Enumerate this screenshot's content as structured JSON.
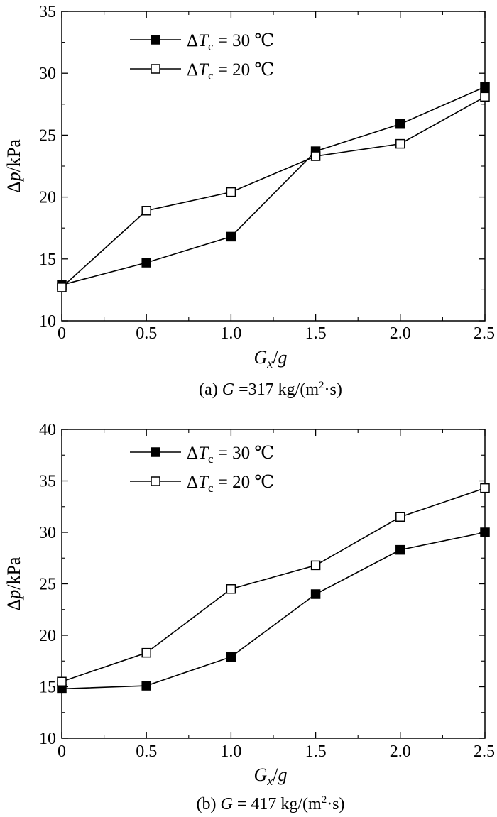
{
  "chart_data": [
    {
      "type": "line",
      "caption": {
        "prefix": "(a) ",
        "symbol": "G",
        "rest": " =317 kg/(m",
        "sup": "2",
        "tail": "·s)"
      },
      "xlabel": {
        "main": "G",
        "sub": "x",
        "suffix": "/g"
      },
      "ylabel": {
        "delta": "Δ",
        "var": "p",
        "unit": "/kPa"
      },
      "xlim": [
        0,
        2.5
      ],
      "ylim": [
        10,
        35
      ],
      "xticks": [
        0,
        0.5,
        1.0,
        1.5,
        2.0,
        2.5
      ],
      "xtick_labels": [
        "0",
        "0.5",
        "1.0",
        "1.5",
        "2.0",
        "2.5"
      ],
      "yticks": [
        10,
        15,
        20,
        25,
        30,
        35
      ],
      "ytick_labels": [
        "10",
        "15",
        "20",
        "25",
        "30",
        "35"
      ],
      "grid": false,
      "legend_position": "top-left",
      "x": [
        0,
        0.5,
        1.0,
        1.5,
        2.0,
        2.5
      ],
      "series": [
        {
          "name": "ΔTc = 30 ℃",
          "legend": {
            "delta": "Δ",
            "var": "T",
            "sub": "c",
            "eq": " = 30 ℃"
          },
          "marker": "filled-square",
          "color": "#000000",
          "values": [
            12.9,
            14.7,
            16.8,
            23.7,
            25.9,
            28.9
          ]
        },
        {
          "name": "ΔTc = 20 ℃",
          "legend": {
            "delta": "Δ",
            "var": "T",
            "sub": "c",
            "eq": " = 20 ℃"
          },
          "marker": "open-square",
          "color": "#000000",
          "values": [
            12.7,
            18.9,
            20.4,
            23.3,
            24.3,
            28.1
          ]
        }
      ]
    },
    {
      "type": "line",
      "caption": {
        "prefix": "(b) ",
        "symbol": "G",
        "rest": " = 417 kg/(m",
        "sup": "2",
        "tail": "·s)"
      },
      "xlabel": {
        "main": "G",
        "sub": "x",
        "suffix": "/g"
      },
      "ylabel": {
        "delta": "Δ",
        "var": "p",
        "unit": "/kPa"
      },
      "xlim": [
        0,
        2.5
      ],
      "ylim": [
        10,
        40
      ],
      "xticks": [
        0,
        0.5,
        1.0,
        1.5,
        2.0,
        2.5
      ],
      "xtick_labels": [
        "0",
        "0.5",
        "1.0",
        "1.5",
        "2.0",
        "2.5"
      ],
      "yticks": [
        10,
        15,
        20,
        25,
        30,
        35,
        40
      ],
      "ytick_labels": [
        "10",
        "15",
        "20",
        "25",
        "30",
        "35",
        "40"
      ],
      "grid": false,
      "legend_position": "top-left",
      "x": [
        0,
        0.5,
        1.0,
        1.5,
        2.0,
        2.5
      ],
      "series": [
        {
          "name": "ΔTc = 30 ℃",
          "legend": {
            "delta": "Δ",
            "var": "T",
            "sub": "c",
            "eq": " = 30 ℃"
          },
          "marker": "filled-square",
          "color": "#000000",
          "values": [
            14.8,
            15.1,
            17.9,
            24.0,
            28.3,
            30.0
          ]
        },
        {
          "name": "ΔTc = 20 ℃",
          "legend": {
            "delta": "Δ",
            "var": "T",
            "sub": "c",
            "eq": " = 20 ℃"
          },
          "marker": "open-square",
          "color": "#000000",
          "values": [
            15.5,
            18.3,
            24.5,
            26.8,
            31.5,
            34.3
          ]
        }
      ]
    }
  ]
}
